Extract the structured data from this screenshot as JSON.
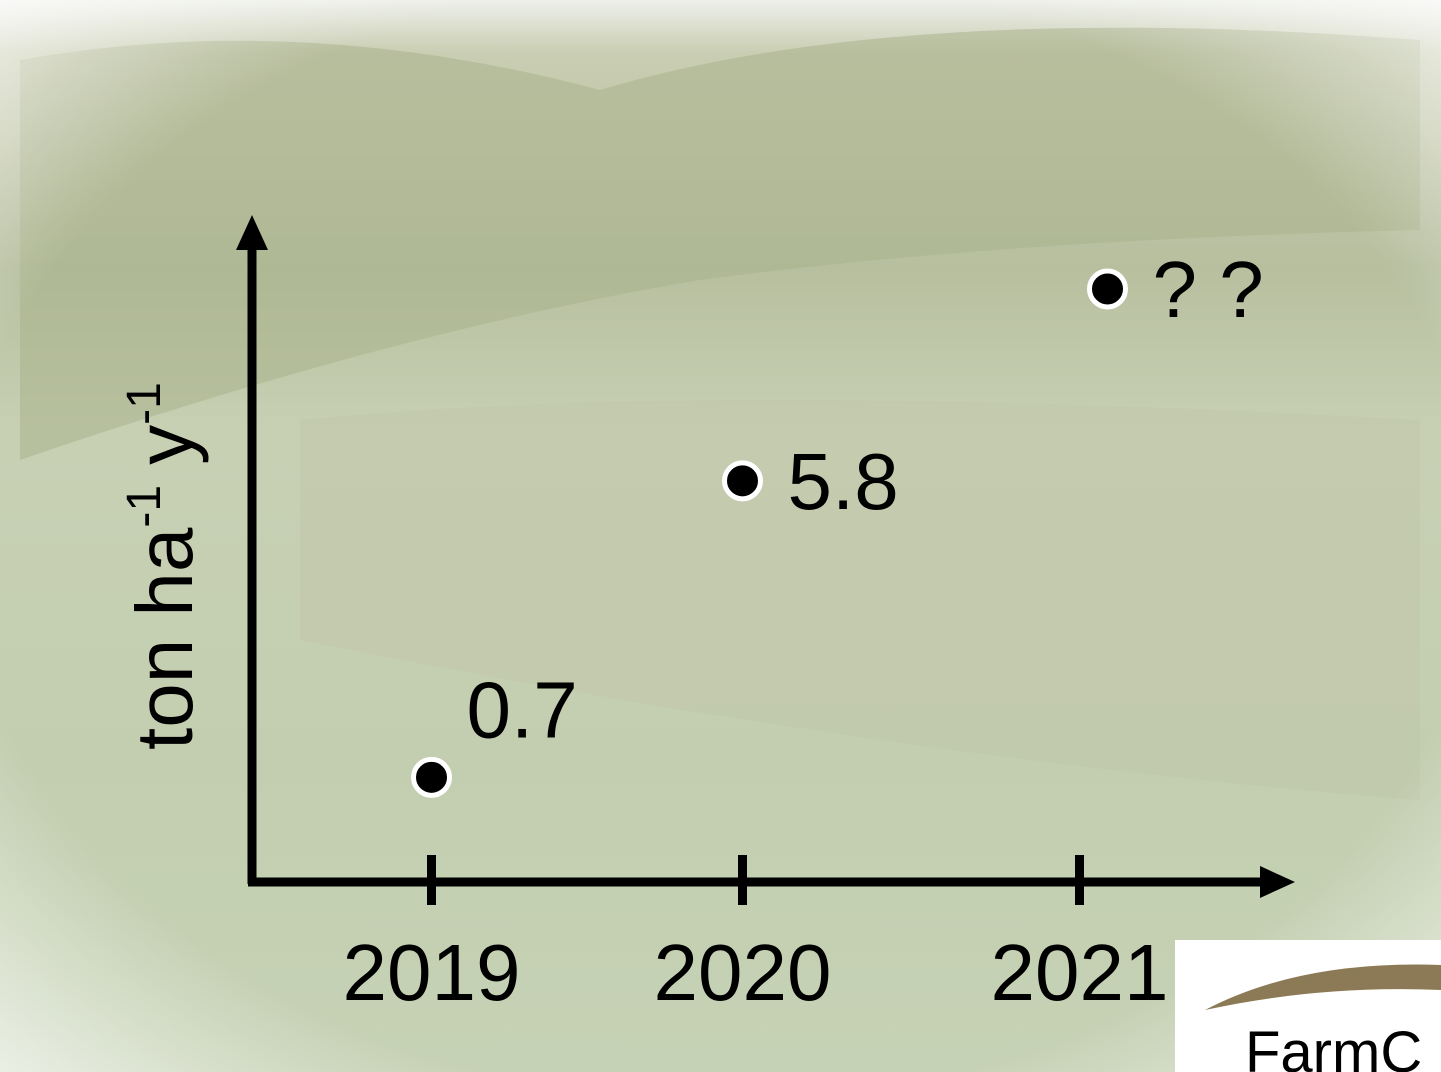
{
  "chart_data": {
    "type": "scatter",
    "y_label_parts": [
      "ton ha",
      "-1",
      "y",
      "-1"
    ],
    "categories": [
      "2019",
      "2020",
      "2021"
    ],
    "values": [
      0.7,
      5.8,
      9.1
    ],
    "value_labels": [
      "0.7",
      "5.8",
      "? ?"
    ],
    "color": "#000000",
    "ylim": [
      -1.1,
      10.2
    ]
  },
  "logo": "FarmC"
}
